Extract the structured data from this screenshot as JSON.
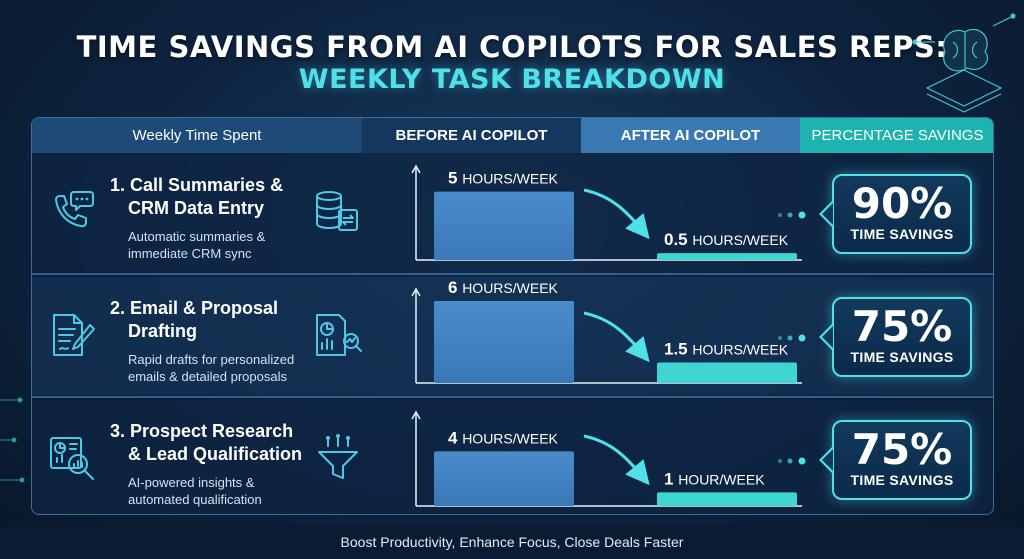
{
  "title_line1": "TIME SAVINGS FROM AI COPILOTS FOR SALES REPS:",
  "title_line2": "WEEKLY TASK BREAKDOWN",
  "headers": {
    "task": "Weekly Time Spent",
    "before": "BEFORE AI COPILOT",
    "after": "AFTER AI COPILOT",
    "savings": "PERCENTAGE SAVINGS"
  },
  "colors": {
    "accent": "#4fe0ea",
    "before_bar": "#3a78b8",
    "after_bar": "#3fd6d2",
    "header_savings": "#1fb3b0"
  },
  "rows": [
    {
      "title_line1": "1. Call Summaries &",
      "title_line2": "CRM Data Entry",
      "desc_line1": "Automatic summaries &",
      "desc_line2": "immediate CRM sync",
      "icon_left": "phone-chat-icon",
      "icon_right": "database-sync-icon",
      "before_num": "5",
      "before_unit": "HOURS/WEEK",
      "after_num": "0.5",
      "after_unit": "HOURS/WEEK",
      "pct": "90%",
      "pct_label": "TIME SAVINGS"
    },
    {
      "title_line1": "2. Email & Proposal",
      "title_line2": "Drafting",
      "desc_line1": "Rapid drafts for personalized",
      "desc_line2": "emails & detailed proposals",
      "icon_left": "document-pen-icon",
      "icon_right": "report-chart-icon",
      "before_num": "6",
      "before_unit": "HOURS/WEEK",
      "after_num": "1.5",
      "after_unit": "HOURS/WEEK",
      "pct": "75%",
      "pct_label": "TIME SAVINGS"
    },
    {
      "title_line1": "3. Prospect Research",
      "title_line2": "& Lead Qualification",
      "desc_line1": "AI-powered insights &",
      "desc_line2": "automated qualification",
      "icon_left": "magnifier-chart-icon",
      "icon_right": "funnel-icon",
      "before_num": "4",
      "before_unit": "HOURS/WEEK",
      "after_num": "1",
      "after_unit": "HOUR/WEEK",
      "pct": "75%",
      "pct_label": "TIME SAVINGS"
    }
  ],
  "chart_data": {
    "type": "bar",
    "categories": [
      "Call Summaries & CRM Data Entry",
      "Email & Proposal Drafting",
      "Prospect Research & Lead Qualification"
    ],
    "series": [
      {
        "name": "BEFORE AI COPILOT",
        "values": [
          5,
          6,
          4
        ]
      },
      {
        "name": "AFTER AI COPILOT",
        "values": [
          0.5,
          1.5,
          1
        ]
      }
    ],
    "savings_percent": [
      90,
      75,
      75
    ],
    "ylabel": "",
    "xlabel": ""
  },
  "footer": "Boost Productivity, Enhance Focus, Close Deals Faster"
}
